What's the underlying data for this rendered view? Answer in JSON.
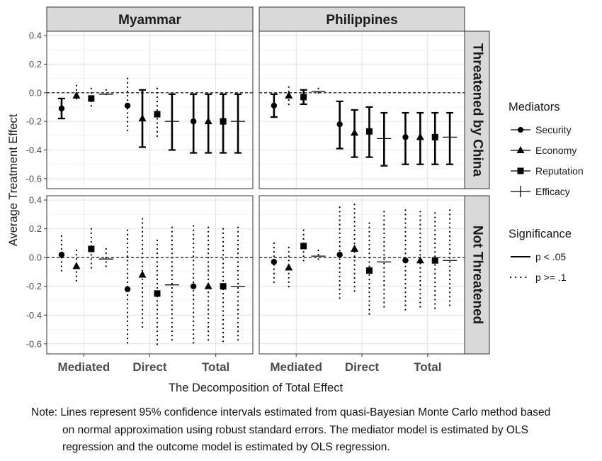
{
  "chart_data": {
    "type": "scatter",
    "facets": {
      "columns": [
        "Myammar",
        "Philippines"
      ],
      "rows": [
        "Threatened by China",
        "Not Threatened"
      ]
    },
    "xlabel": "The Decomposition of Total Effect",
    "ylabel": "Average Treatment Effect",
    "x_groups": [
      "Mediated",
      "Direct",
      "Total"
    ],
    "ylim": [
      -0.67,
      0.43
    ],
    "y_ticks": [
      "0.4",
      "0.2",
      "0.0",
      "-0.2",
      "-0.4",
      "-0.6"
    ],
    "reference_line_y": 0,
    "grid": true,
    "legend": {
      "position": "right",
      "mediators_title": "Mediators",
      "mediators": [
        {
          "name": "Security",
          "shape": "circle"
        },
        {
          "name": "Economy",
          "shape": "triangle"
        },
        {
          "name": "Reputation",
          "shape": "square"
        },
        {
          "name": "Efficacy",
          "shape": "plus"
        }
      ],
      "significance_title": "Significance",
      "significance": [
        {
          "label": "p < .05",
          "style": "solid"
        },
        {
          "label": "p >= .1",
          "style": "dotted"
        }
      ]
    },
    "panels": [
      {
        "column": "Myammar",
        "row": "Threatened by China",
        "points": [
          {
            "group": "Mediated",
            "mediator": "Security",
            "y": -0.11,
            "lo": -0.18,
            "hi": -0.04,
            "sig": true
          },
          {
            "group": "Mediated",
            "mediator": "Economy",
            "y": -0.02,
            "lo": -0.07,
            "hi": 0.05,
            "sig": false
          },
          {
            "group": "Mediated",
            "mediator": "Reputation",
            "y": -0.04,
            "lo": -0.12,
            "hi": 0.03,
            "sig": false
          },
          {
            "group": "Mediated",
            "mediator": "Efficacy",
            "y": -0.01,
            "lo": -0.04,
            "hi": 0.02,
            "sig": false
          },
          {
            "group": "Direct",
            "mediator": "Security",
            "y": -0.09,
            "lo": -0.29,
            "hi": 0.1,
            "sig": false
          },
          {
            "group": "Direct",
            "mediator": "Economy",
            "y": -0.18,
            "lo": -0.38,
            "hi": 0.02,
            "sig": true
          },
          {
            "group": "Direct",
            "mediator": "Reputation",
            "y": -0.15,
            "lo": -0.33,
            "hi": 0.03,
            "sig": false
          },
          {
            "group": "Direct",
            "mediator": "Efficacy",
            "y": -0.2,
            "lo": -0.4,
            "hi": -0.01,
            "sig": true
          },
          {
            "group": "Total",
            "mediator": "Security",
            "y": -0.2,
            "lo": -0.42,
            "hi": -0.01,
            "sig": true
          },
          {
            "group": "Total",
            "mediator": "Economy",
            "y": -0.2,
            "lo": -0.42,
            "hi": -0.01,
            "sig": true
          },
          {
            "group": "Total",
            "mediator": "Reputation",
            "y": -0.2,
            "lo": -0.42,
            "hi": -0.01,
            "sig": true
          },
          {
            "group": "Total",
            "mediator": "Efficacy",
            "y": -0.2,
            "lo": -0.42,
            "hi": -0.01,
            "sig": true
          }
        ]
      },
      {
        "column": "Philippines",
        "row": "Threatened by China",
        "points": [
          {
            "group": "Mediated",
            "mediator": "Security",
            "y": -0.09,
            "lo": -0.17,
            "hi": -0.01,
            "sig": true
          },
          {
            "group": "Mediated",
            "mediator": "Economy",
            "y": -0.02,
            "lo": -0.09,
            "hi": 0.04,
            "sig": false
          },
          {
            "group": "Mediated",
            "mediator": "Reputation",
            "y": -0.03,
            "lo": -0.08,
            "hi": 0.02,
            "sig": true
          },
          {
            "group": "Mediated",
            "mediator": "Efficacy",
            "y": 0.01,
            "lo": -0.01,
            "hi": 0.03,
            "sig": false
          },
          {
            "group": "Direct",
            "mediator": "Security",
            "y": -0.22,
            "lo": -0.39,
            "hi": -0.06,
            "sig": true
          },
          {
            "group": "Direct",
            "mediator": "Economy",
            "y": -0.28,
            "lo": -0.45,
            "hi": -0.12,
            "sig": true
          },
          {
            "group": "Direct",
            "mediator": "Reputation",
            "y": -0.27,
            "lo": -0.45,
            "hi": -0.1,
            "sig": true
          },
          {
            "group": "Direct",
            "mediator": "Efficacy",
            "y": -0.32,
            "lo": -0.51,
            "hi": -0.14,
            "sig": true
          },
          {
            "group": "Total",
            "mediator": "Security",
            "y": -0.31,
            "lo": -0.5,
            "hi": -0.14,
            "sig": true
          },
          {
            "group": "Total",
            "mediator": "Economy",
            "y": -0.31,
            "lo": -0.5,
            "hi": -0.14,
            "sig": true
          },
          {
            "group": "Total",
            "mediator": "Reputation",
            "y": -0.31,
            "lo": -0.5,
            "hi": -0.14,
            "sig": true
          },
          {
            "group": "Total",
            "mediator": "Efficacy",
            "y": -0.31,
            "lo": -0.5,
            "hi": -0.14,
            "sig": true
          }
        ]
      },
      {
        "column": "Myammar",
        "row": "Not Threatened",
        "points": [
          {
            "group": "Mediated",
            "mediator": "Security",
            "y": 0.02,
            "lo": -0.11,
            "hi": 0.15,
            "sig": false
          },
          {
            "group": "Mediated",
            "mediator": "Economy",
            "y": -0.06,
            "lo": -0.19,
            "hi": 0.05,
            "sig": false
          },
          {
            "group": "Mediated",
            "mediator": "Reputation",
            "y": 0.06,
            "lo": -0.08,
            "hi": 0.2,
            "sig": false
          },
          {
            "group": "Mediated",
            "mediator": "Efficacy",
            "y": -0.01,
            "lo": -0.07,
            "hi": 0.06,
            "sig": false
          },
          {
            "group": "Direct",
            "mediator": "Security",
            "y": -0.22,
            "lo": -0.6,
            "hi": 0.19,
            "sig": false
          },
          {
            "group": "Direct",
            "mediator": "Economy",
            "y": -0.12,
            "lo": -0.5,
            "hi": 0.27,
            "sig": false
          },
          {
            "group": "Direct",
            "mediator": "Reputation",
            "y": -0.25,
            "lo": -0.62,
            "hi": 0.12,
            "sig": false
          },
          {
            "group": "Direct",
            "mediator": "Efficacy",
            "y": -0.19,
            "lo": -0.58,
            "hi": 0.21,
            "sig": false
          },
          {
            "group": "Total",
            "mediator": "Security",
            "y": -0.2,
            "lo": -0.6,
            "hi": 0.22,
            "sig": false
          },
          {
            "group": "Total",
            "mediator": "Economy",
            "y": -0.2,
            "lo": -0.59,
            "hi": 0.21,
            "sig": false
          },
          {
            "group": "Total",
            "mediator": "Reputation",
            "y": -0.2,
            "lo": -0.6,
            "hi": 0.2,
            "sig": false
          },
          {
            "group": "Total",
            "mediator": "Efficacy",
            "y": -0.2,
            "lo": -0.58,
            "hi": 0.21,
            "sig": false
          }
        ]
      },
      {
        "column": "Philippines",
        "row": "Not Threatened",
        "points": [
          {
            "group": "Mediated",
            "mediator": "Security",
            "y": -0.03,
            "lo": -0.18,
            "hi": 0.1,
            "sig": false
          },
          {
            "group": "Mediated",
            "mediator": "Economy",
            "y": -0.07,
            "lo": -0.21,
            "hi": 0.07,
            "sig": false
          },
          {
            "group": "Mediated",
            "mediator": "Reputation",
            "y": 0.08,
            "lo": -0.04,
            "hi": 0.19,
            "sig": false
          },
          {
            "group": "Mediated",
            "mediator": "Efficacy",
            "y": 0.01,
            "lo": -0.02,
            "hi": 0.05,
            "sig": false
          },
          {
            "group": "Direct",
            "mediator": "Security",
            "y": 0.02,
            "lo": -0.3,
            "hi": 0.35,
            "sig": false
          },
          {
            "group": "Direct",
            "mediator": "Economy",
            "y": 0.06,
            "lo": -0.25,
            "hi": 0.37,
            "sig": false
          },
          {
            "group": "Direct",
            "mediator": "Reputation",
            "y": -0.09,
            "lo": -0.42,
            "hi": 0.24,
            "sig": false
          },
          {
            "group": "Direct",
            "mediator": "Efficacy",
            "y": -0.03,
            "lo": -0.36,
            "hi": 0.32,
            "sig": false
          },
          {
            "group": "Total",
            "mediator": "Security",
            "y": -0.02,
            "lo": -0.37,
            "hi": 0.33,
            "sig": false
          },
          {
            "group": "Total",
            "mediator": "Economy",
            "y": -0.02,
            "lo": -0.36,
            "hi": 0.32,
            "sig": false
          },
          {
            "group": "Total",
            "mediator": "Reputation",
            "y": -0.02,
            "lo": -0.36,
            "hi": 0.31,
            "sig": false
          },
          {
            "group": "Total",
            "mediator": "Efficacy",
            "y": -0.02,
            "lo": -0.35,
            "hi": 0.33,
            "sig": false
          }
        ]
      }
    ]
  },
  "note": {
    "line1": "Note: Lines represent 95% confidence intervals estimated from quasi-Bayesian Monte Carlo method based",
    "line2": "on normal approximation using robust standard errors. The mediator model is estimated by OLS",
    "line3": "regression and the outcome model is estimated by OLS regression."
  }
}
